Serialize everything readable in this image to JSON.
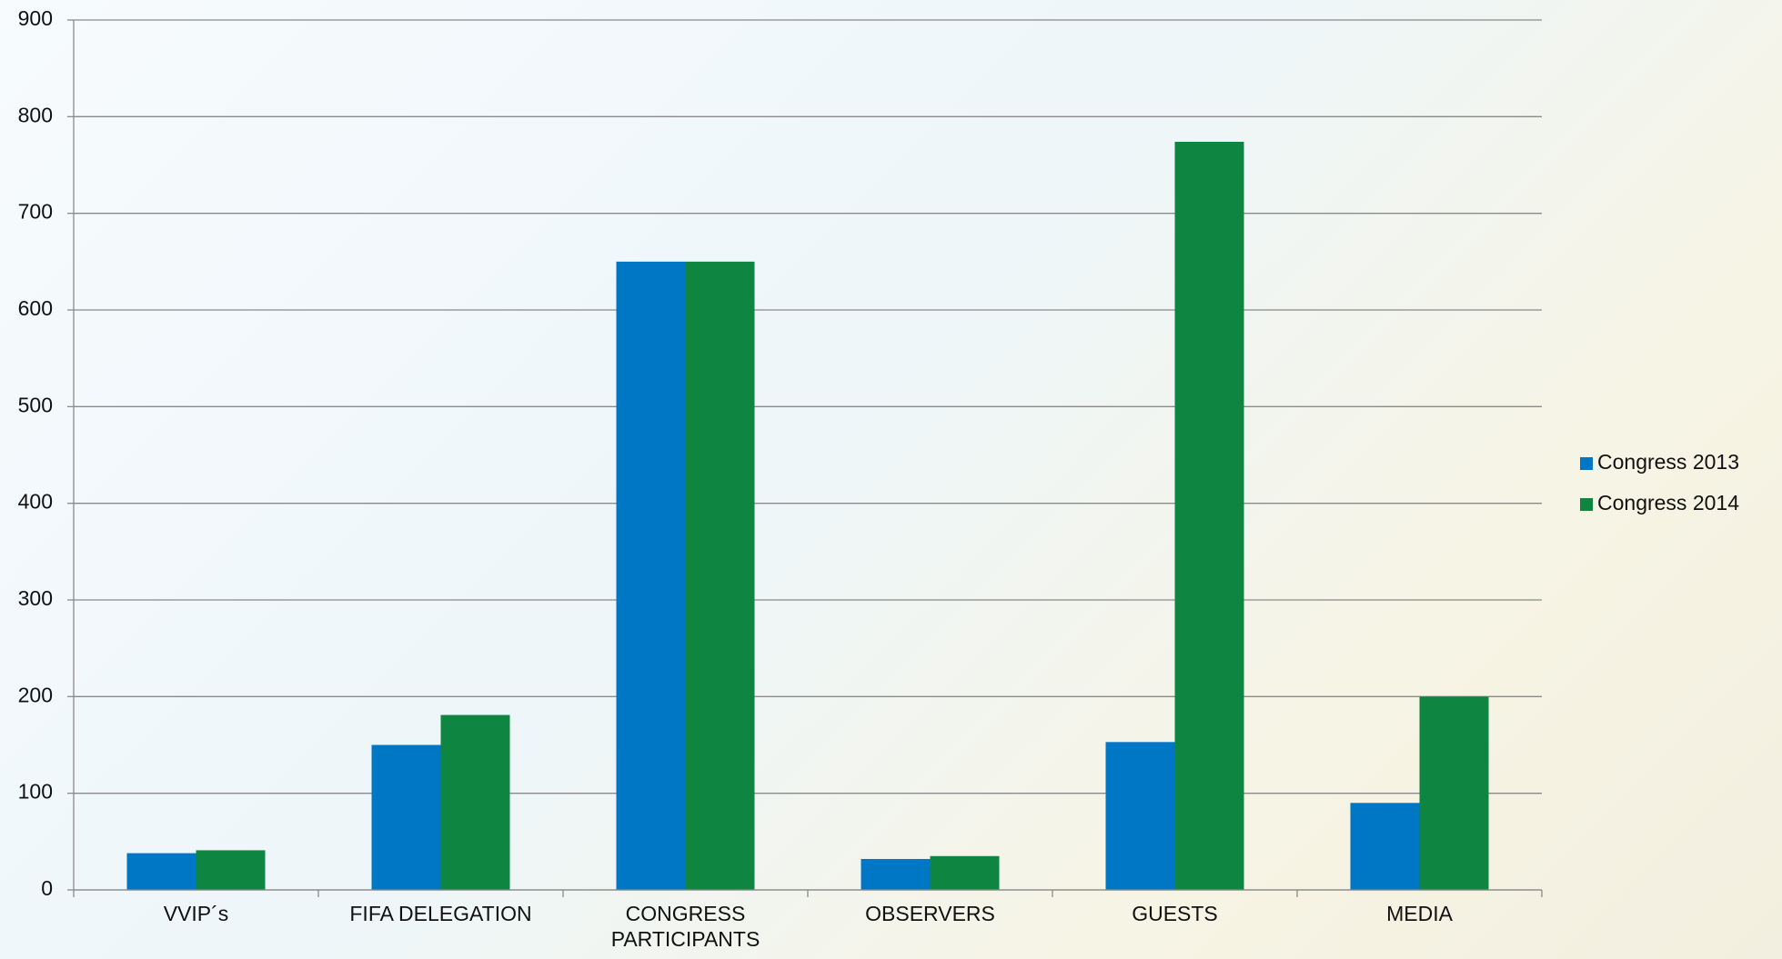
{
  "chart_data": {
    "type": "bar",
    "categories": [
      "VVIP´s",
      "FIFA DELEGATION",
      "CONGRESS PARTICIPANTS",
      "OBSERVERS",
      "GUESTS",
      "MEDIA"
    ],
    "series": [
      {
        "name": "Congress 2013",
        "color": "#0077c5",
        "values": [
          38,
          150,
          650,
          32,
          153,
          90
        ]
      },
      {
        "name": "Congress 2014",
        "color": "#0e8540",
        "values": [
          41,
          181,
          650,
          35,
          774,
          200
        ]
      }
    ],
    "ylim": [
      0,
      900
    ],
    "yticks": [
      0,
      100,
      200,
      300,
      400,
      500,
      600,
      700,
      800,
      900
    ],
    "grid": true,
    "legend": "right"
  }
}
